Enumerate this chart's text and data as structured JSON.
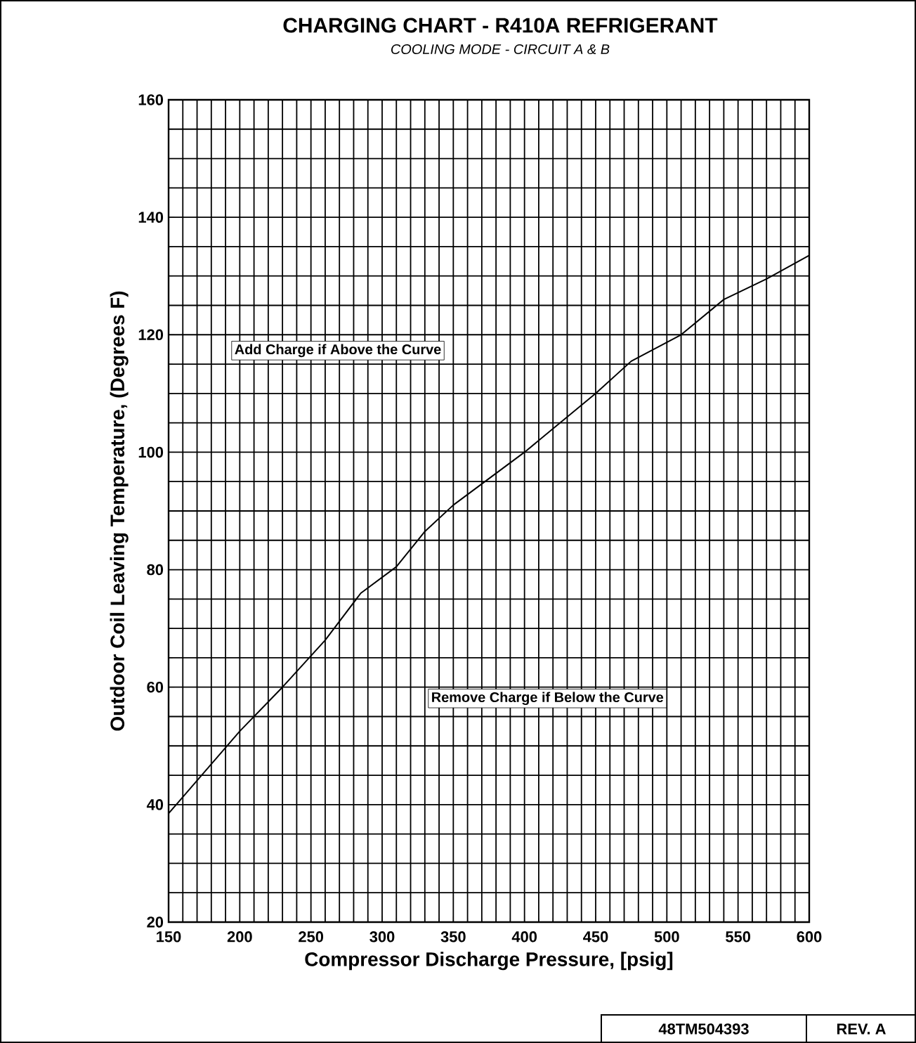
{
  "chart_data": {
    "type": "line",
    "title": "CHARGING CHART - R410A REFRIGERANT",
    "subtitle": "COOLING MODE - CIRCUIT A & B",
    "xlabel": "Compressor Discharge Pressure, [psig]",
    "ylabel": "Outdoor Coil Leaving Temperature, (Degrees F)",
    "x": [
      150,
      175,
      200,
      230,
      260,
      285,
      310,
      330,
      350,
      400,
      450,
      475,
      510,
      540,
      570,
      600
    ],
    "series": [
      {
        "color": "#000000",
        "values": [
          38.5,
          45.5,
          52.5,
          60,
          68,
          76,
          80.5,
          86.5,
          91,
          100,
          110,
          115.5,
          120,
          126,
          129.5,
          133.5
        ]
      }
    ],
    "xlim": [
      150,
      600
    ],
    "ylim": [
      20,
      160
    ],
    "xticks": [
      150,
      200,
      250,
      300,
      350,
      400,
      450,
      500,
      550,
      600
    ],
    "yticks": [
      20,
      40,
      60,
      80,
      100,
      120,
      140,
      160
    ],
    "grid": true,
    "marker": "none",
    "line_style": "solid",
    "annotations": [
      "Add Charge if Above the Curve",
      "Remove Charge if Below the Curve",
      "48TM504393",
      "REV.  A"
    ]
  }
}
